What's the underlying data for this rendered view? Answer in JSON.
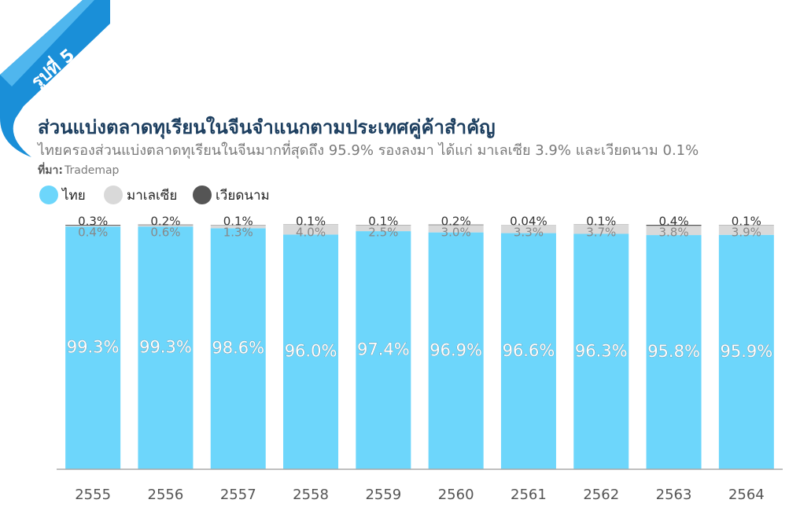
{
  "badge": "รูปที่ 5",
  "chart_data": {
    "type": "stacked_bar",
    "title": "ส่วนแบ่งตลาดทุเรียนในจีนจำแนกตามประเทศคู่ค้าสำคัญ",
    "subtitle": "ไทยครองส่วนแบ่งตลาดทุเรียนในจีนมากที่สุดถึง 95.9% รองลงมา ได้แก่ มาเลเซีย 3.9% และเวียดนาม 0.1%",
    "source_label": "ที่มา:",
    "source": "Trademap",
    "categories": [
      "2555",
      "2556",
      "2557",
      "2558",
      "2559",
      "2560",
      "2561",
      "2562",
      "2563",
      "2564"
    ],
    "ylim": [
      0,
      100
    ],
    "series": [
      {
        "name": "ไทย",
        "color": "#6dd6fb",
        "values": [
          99.3,
          99.3,
          98.6,
          96.0,
          97.4,
          96.9,
          96.6,
          96.3,
          95.8,
          95.9
        ],
        "value_labels": [
          "99.3%",
          "99.3%",
          "98.6%",
          "96.0%",
          "97.4%",
          "96.9%",
          "96.6%",
          "96.3%",
          "95.8%",
          "95.9%"
        ]
      },
      {
        "name": "มาเลเซีย",
        "color": "#d9d9d9",
        "values": [
          0.4,
          0.6,
          1.3,
          4.0,
          2.5,
          3.0,
          3.3,
          3.7,
          3.8,
          3.9
        ],
        "value_labels": [
          "0.4%",
          "0.6%",
          "1.3%",
          "4.0%",
          "2.5%",
          "3.0%",
          "3.3%",
          "3.7%",
          "3.8%",
          "3.9%"
        ]
      },
      {
        "name": "เวียดนาม",
        "color": "#555555",
        "values": [
          0.3,
          0.2,
          0.1,
          0.1,
          0.1,
          0.2,
          0.04,
          0.1,
          0.4,
          0.1
        ],
        "value_labels": [
          "0.3%",
          "0.2%",
          "0.1%",
          "0.1%",
          "0.1%",
          "0.2%",
          "0.04%",
          "0.1%",
          "0.4%",
          "0.1%"
        ]
      }
    ]
  }
}
